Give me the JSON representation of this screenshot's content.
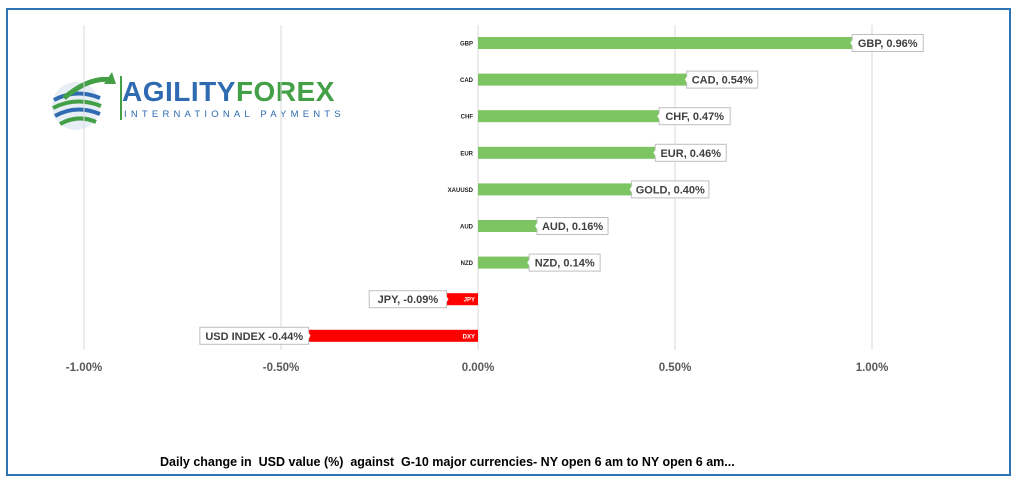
{
  "logo": {
    "word_part1": "AGILITY",
    "word_part2": "FOREX",
    "tagline": "INTERNATIONAL PAYMENTS",
    "icon": "globe-arrow-icon",
    "colors": {
      "blue": "#2e6bb0",
      "green": "#43a047"
    }
  },
  "caption": "Daily change in  USD value (%)  against  G-10 major currencies- NY open 6 am to NY open 6 am...",
  "chart_data": {
    "type": "bar",
    "orientation": "horizontal",
    "categories": [
      "GBP",
      "CAD",
      "CHF",
      "EUR",
      "XAUUSD",
      "AUD",
      "NZD",
      "JPY",
      "DXY"
    ],
    "values": [
      0.96,
      0.54,
      0.47,
      0.46,
      0.4,
      0.16,
      0.14,
      -0.09,
      -0.44
    ],
    "data_labels": [
      "GBP, 0.96%",
      "CAD, 0.54%",
      "CHF, 0.47%",
      "EUR, 0.46%",
      "GOLD, 0.40%",
      "AUD, 0.16%",
      "NZD, 0.14%",
      "JPY, -0.09%",
      "USD INDEX -0.44%"
    ],
    "xlim": [
      -1.0,
      1.0
    ],
    "x_ticks": [
      -1.0,
      -0.5,
      0.0,
      0.5,
      1.0
    ],
    "x_tick_labels": [
      "-1.00%",
      "-0.50%",
      "0.00%",
      "0.50%",
      "1.00%"
    ],
    "grid": "vertical",
    "colors": {
      "positive": "#7dc462",
      "negative": "#ff0000",
      "grid": "#d9d9d9",
      "label_border": "#bfbfbf"
    }
  }
}
